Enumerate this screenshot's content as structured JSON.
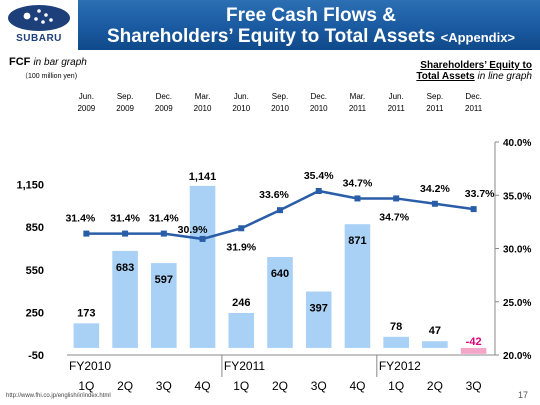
{
  "header": {
    "brand": "SUBARU",
    "title_line1": "Free Cash Flows &",
    "title_line2": "Shareholders’ Equity to Total Assets",
    "title_appendix": "<Appendix>"
  },
  "legend": {
    "fcf_bold": "FCF",
    "fcf_italic": "in bar graph",
    "fcf_unit": "（100 million yen)",
    "se_line1": "Shareholders’ Equity to",
    "se_line2_bold": "Total Assets",
    "se_line2_italic": "in line graph"
  },
  "footer": {
    "url": "http://www.fhi.co.jp/english/ir/index.html",
    "page": "17"
  },
  "colors": {
    "header": "#1a5aa0",
    "bar": "#a9d0f5",
    "bar_negative": "#f4a6c8",
    "line": "#2a5da8",
    "negative_label": "#e0007a"
  },
  "chart_data": {
    "type": "bar",
    "categories": [
      "1Q",
      "2Q",
      "3Q",
      "4Q",
      "1Q",
      "2Q",
      "3Q",
      "4Q",
      "1Q",
      "2Q",
      "3Q"
    ],
    "date_labels": [
      [
        "Jun.",
        "2009"
      ],
      [
        "Sep.",
        "2009"
      ],
      [
        "Dec.",
        "2009"
      ],
      [
        "Mar.",
        "2010"
      ],
      [
        "Jun.",
        "2010"
      ],
      [
        "Sep.",
        "2010"
      ],
      [
        "Dec.",
        "2010"
      ],
      [
        "Mar.",
        "2011"
      ],
      [
        "Jun.",
        "2011"
      ],
      [
        "Sep.",
        "2011"
      ],
      [
        "Dec.",
        "2011"
      ]
    ],
    "fiscal_years": [
      {
        "label": "FY2010",
        "start": 0
      },
      {
        "label": "FY2011",
        "start": 4
      },
      {
        "label": "FY2012",
        "start": 8
      }
    ],
    "series": [
      {
        "name": "FCF",
        "type": "bar",
        "axis": "left",
        "values": [
          173,
          683,
          597,
          1141,
          246,
          640,
          397,
          871,
          78,
          47,
          -42
        ],
        "labels": [
          "173",
          "683",
          "597",
          "1,141",
          "246",
          "640",
          "397",
          "871",
          "78",
          "47",
          "-42"
        ]
      },
      {
        "name": "Shareholders’ Equity to Total Assets",
        "type": "line",
        "axis": "right",
        "values": [
          31.4,
          31.4,
          31.4,
          30.9,
          31.9,
          33.6,
          35.4,
          34.7,
          34.7,
          34.2,
          33.7
        ],
        "labels": [
          "31.4%",
          "31.4%",
          "31.4%",
          "30.9%",
          "31.9%",
          "33.6%",
          "35.4%",
          "34.7%",
          "34.7%",
          "34.2%",
          "33.7%"
        ]
      }
    ],
    "y_left": {
      "ticks": [
        -50,
        250,
        550,
        850,
        1150
      ],
      "tick_labels": [
        "-50",
        "250",
        "550",
        "850",
        "1,150"
      ],
      "range": [
        -50,
        1450
      ]
    },
    "y_right": {
      "ticks": [
        20,
        25,
        30,
        35,
        40
      ],
      "tick_labels": [
        "20.0%",
        "25.0%",
        "30.0%",
        "35.0%",
        "40.0%"
      ],
      "range": [
        20,
        40
      ]
    },
    "grid": false
  }
}
